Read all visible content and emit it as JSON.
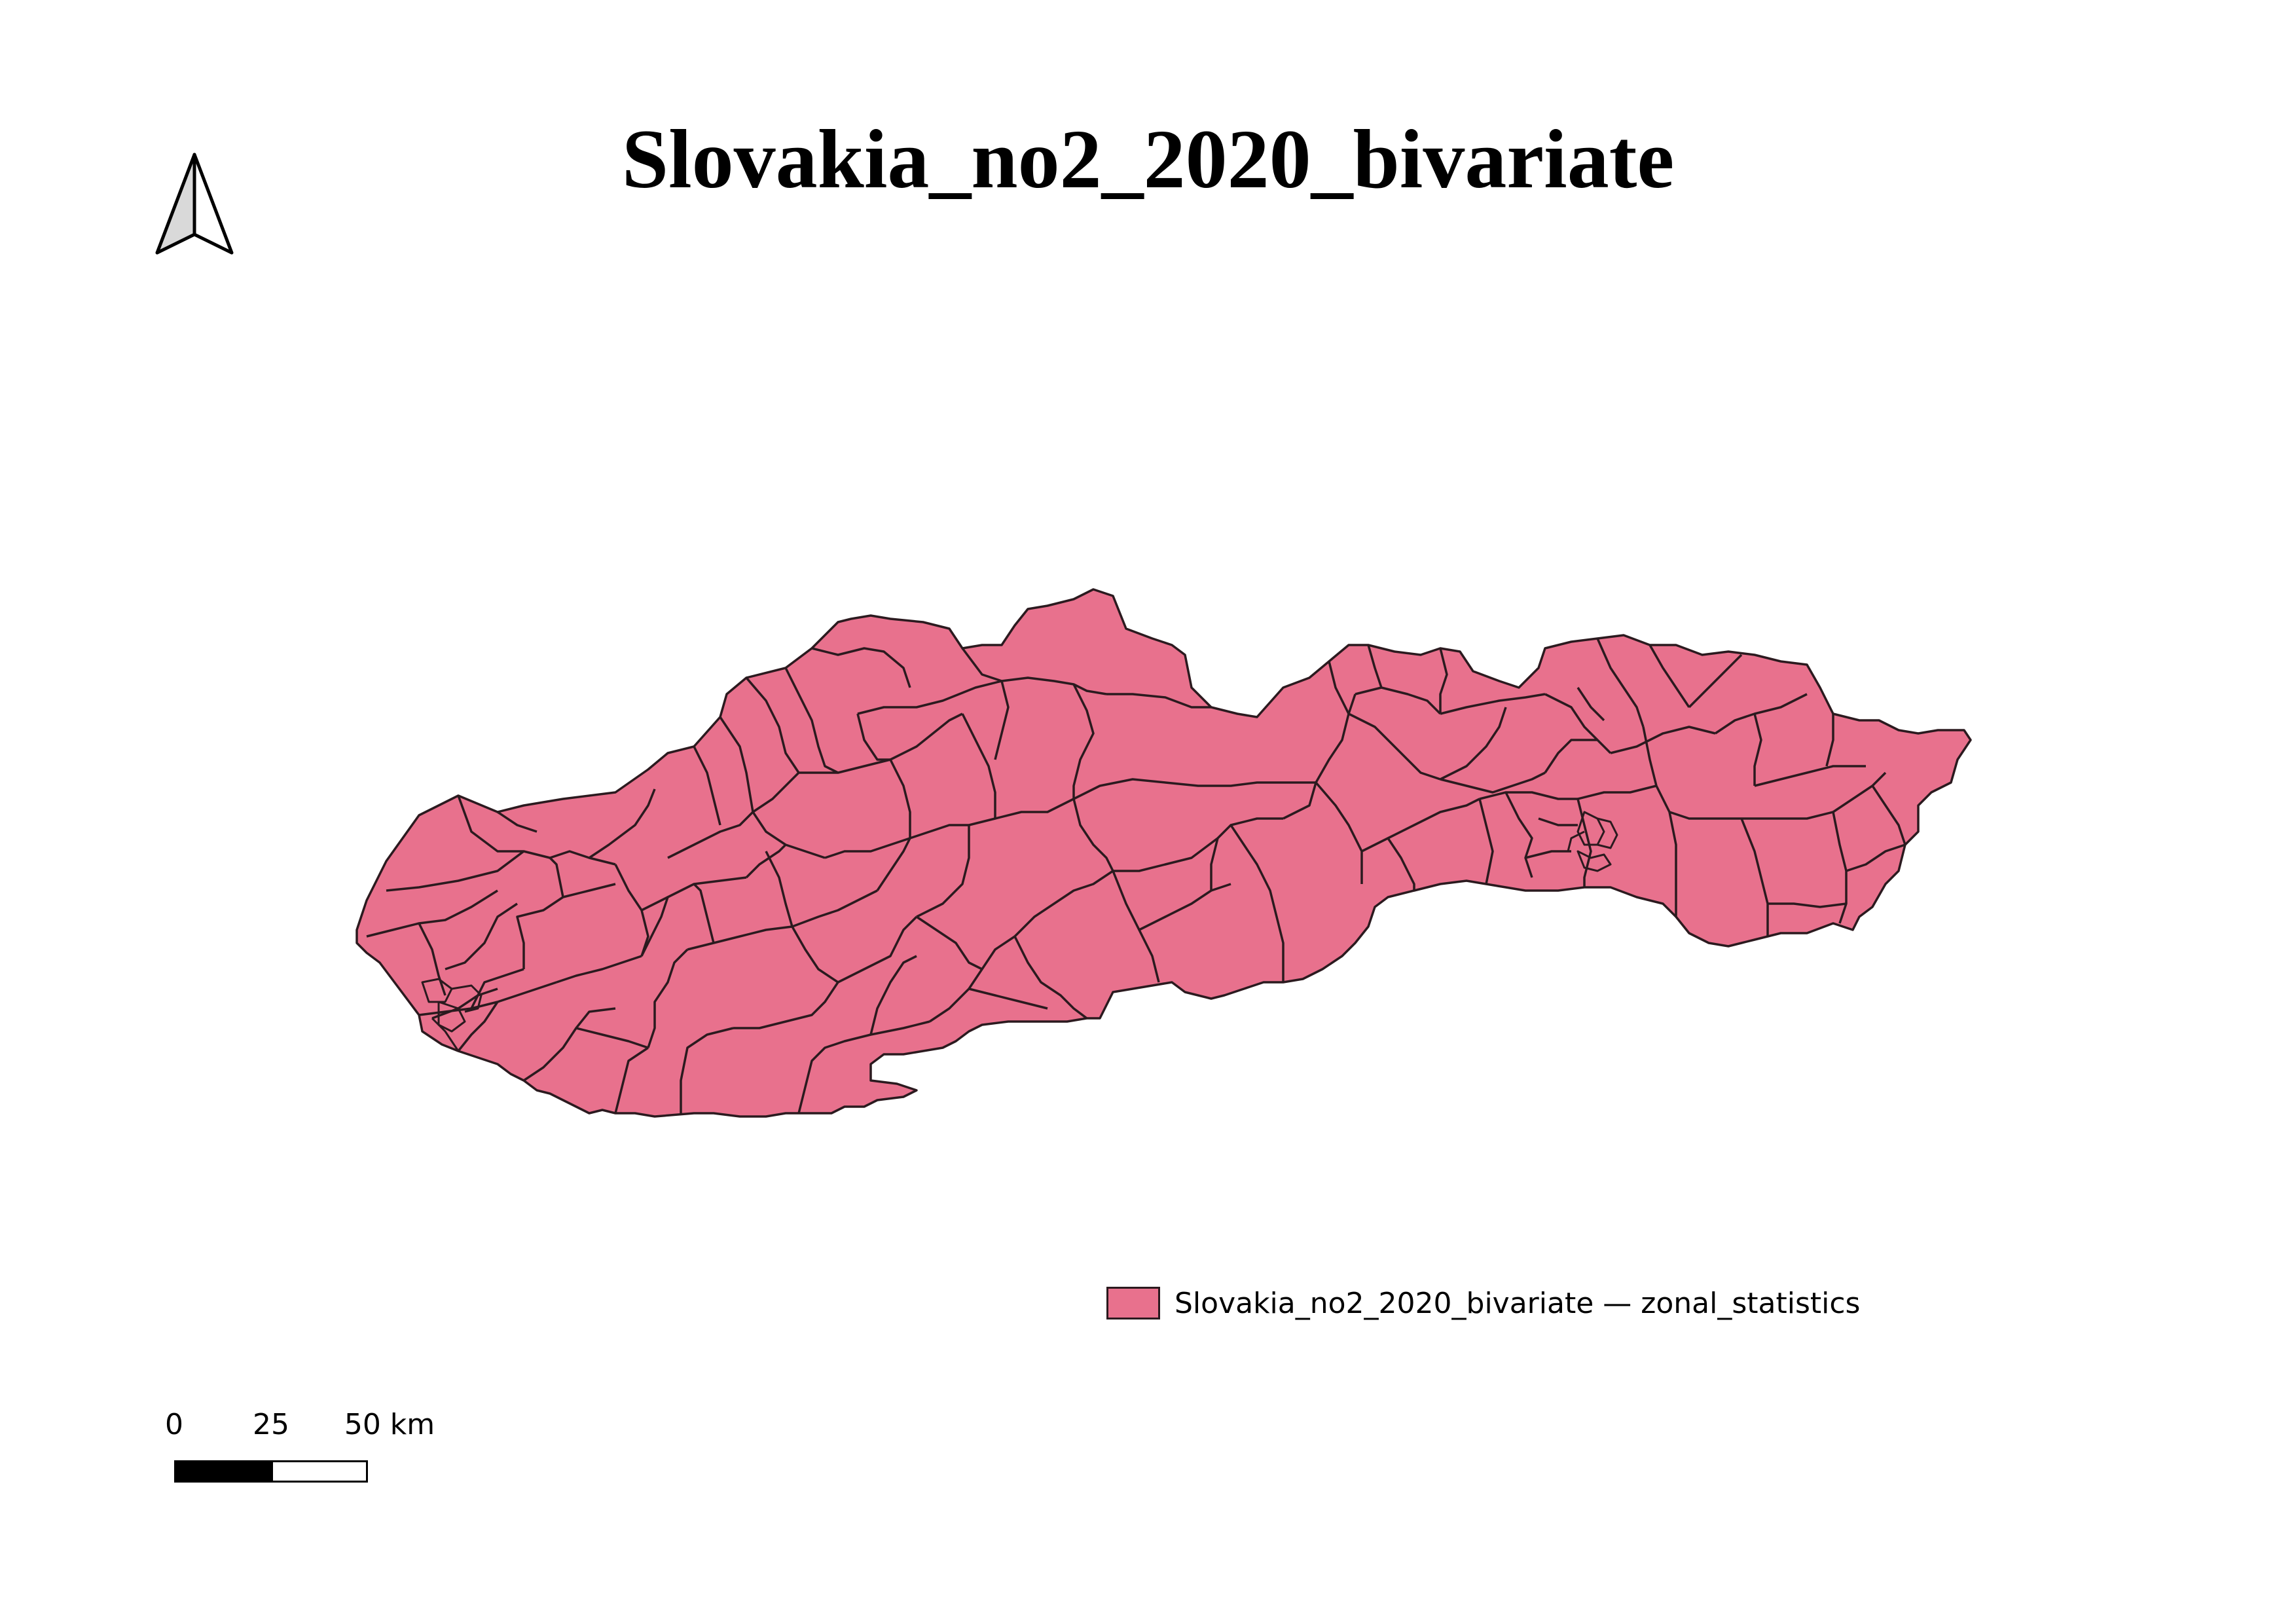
{
  "title": "Slovakia_no2_2020_bivariate",
  "map": {
    "fill_color": "#e8718d",
    "stroke_color": "#2b1a1f",
    "background": "#ffffff"
  },
  "legend": {
    "label": "Slovakia_no2_2020_bivariate — zonal_statistics",
    "swatch_color": "#e8718d"
  },
  "scalebar": {
    "ticks": [
      "0",
      "25",
      "50 km"
    ]
  },
  "north_arrow": {
    "icon": "north-arrow-icon"
  }
}
